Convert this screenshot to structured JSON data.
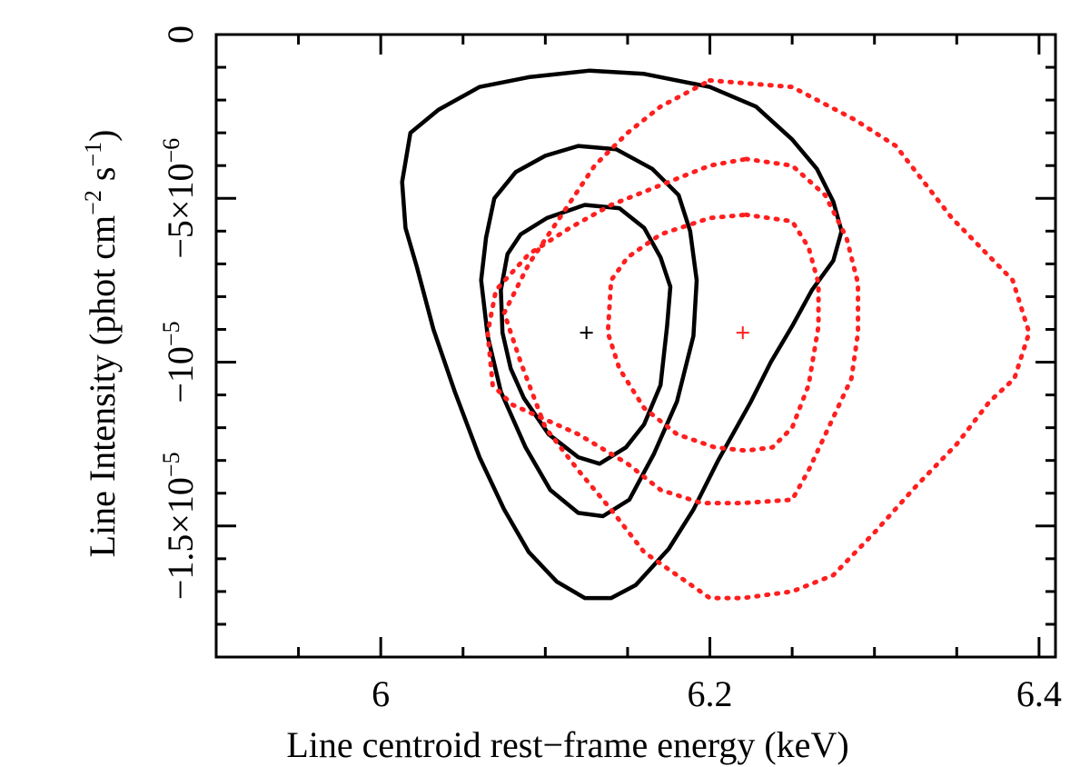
{
  "chart_data": {
    "type": "contour",
    "title": "",
    "xlabel": "Line centroid rest−frame energy (keV)",
    "ylabel": {
      "base": "Line Intensity (phot cm",
      "exp1": "−2",
      "mid": " s",
      "exp2": "−1",
      "close": ")"
    },
    "xlim": [
      5.9,
      6.41
    ],
    "ylim": [
      -1.9e-05,
      0
    ],
    "x_ticks": [
      {
        "value": 6.0,
        "label": "6"
      },
      {
        "value": 6.2,
        "label": "6.2"
      },
      {
        "value": 6.4,
        "label": "6.4"
      }
    ],
    "y_ticks": [
      {
        "value": 0,
        "label": "0",
        "kind": "plain"
      },
      {
        "value": -5e-06,
        "kind": "sci",
        "sign": "−",
        "mant": "5",
        "times": "×",
        "base": "10",
        "exp": "−6"
      },
      {
        "value": -1e-05,
        "kind": "sci",
        "sign": "−",
        "mant": "",
        "times": "",
        "base": "10",
        "exp": "−5"
      },
      {
        "value": -1.5e-05,
        "kind": "sci",
        "sign": "−",
        "mant": "1.5",
        "times": "×",
        "base": "10",
        "exp": "−5"
      }
    ],
    "x_minor_step": 0.05,
    "y_minor_step": 1e-06,
    "series": [
      {
        "name": "black-contours",
        "color": "#000000",
        "style": "solid",
        "best_fit": [
          6.125,
          -9.1e-06
        ],
        "contours": [
          [
            [
              6.124,
              -5.2e-06
            ],
            [
              6.145,
              -5.3e-06
            ],
            [
              6.16,
              -5.9e-06
            ],
            [
              6.17,
              -6.8e-06
            ],
            [
              6.176,
              -7.7e-06
            ],
            [
              6.174,
              -8.9e-06
            ],
            [
              6.17,
              -1.07e-05
            ],
            [
              6.16,
              -1.19e-05
            ],
            [
              6.149,
              -1.26e-05
            ],
            [
              6.133,
              -1.31e-05
            ],
            [
              6.12,
              -1.29e-05
            ],
            [
              6.102,
              -1.22e-05
            ],
            [
              6.087,
              -1.11e-05
            ],
            [
              6.079,
              -1.02e-05
            ],
            [
              6.074,
              -9.1e-06
            ],
            [
              6.073,
              -7.8e-06
            ],
            [
              6.077,
              -6.7e-06
            ],
            [
              6.085,
              -6.1e-06
            ],
            [
              6.101,
              -5.6e-06
            ],
            [
              6.124,
              -5.2e-06
            ]
          ],
          [
            [
              6.12,
              -3.4e-06
            ],
            [
              6.143,
              -3.5e-06
            ],
            [
              6.165,
              -4.1e-06
            ],
            [
              6.181,
              -4.9e-06
            ],
            [
              6.188,
              -6e-06
            ],
            [
              6.192,
              -7.5e-06
            ],
            [
              6.19,
              -9.2e-06
            ],
            [
              6.18,
              -1.12e-05
            ],
            [
              6.166,
              -1.28e-05
            ],
            [
              6.151,
              -1.42e-05
            ],
            [
              6.135,
              -1.47e-05
            ],
            [
              6.12,
              -1.46e-05
            ],
            [
              6.103,
              -1.39e-05
            ],
            [
              6.088,
              -1.26e-05
            ],
            [
              6.073,
              -1.09e-05
            ],
            [
              6.065,
              -9.2e-06
            ],
            [
              6.061,
              -7.5e-06
            ],
            [
              6.064,
              -6.2e-06
            ],
            [
              6.069,
              -5e-06
            ],
            [
              6.082,
              -4.2e-06
            ],
            [
              6.1,
              -3.7e-06
            ],
            [
              6.12,
              -3.4e-06
            ]
          ],
          [
            [
              6.127,
              -1.1e-06
            ],
            [
              6.16,
              -1.2e-06
            ],
            [
              6.2,
              -1.6e-06
            ],
            [
              6.228,
              -2.2e-06
            ],
            [
              6.25,
              -3.2e-06
            ],
            [
              6.265,
              -4.1e-06
            ],
            [
              6.275,
              -5.1e-06
            ],
            [
              6.28,
              -6e-06
            ],
            [
              6.275,
              -6.9e-06
            ],
            [
              6.262,
              -7.8e-06
            ],
            [
              6.25,
              -8.9e-06
            ],
            [
              6.237,
              -1e-05
            ],
            [
              6.225,
              -1.12e-05
            ],
            [
              6.205,
              -1.3e-05
            ],
            [
              6.19,
              -1.45e-05
            ],
            [
              6.175,
              -1.57e-05
            ],
            [
              6.155,
              -1.68e-05
            ],
            [
              6.14,
              -1.72e-05
            ],
            [
              6.124,
              -1.72e-05
            ],
            [
              6.107,
              -1.67e-05
            ],
            [
              6.09,
              -1.58e-05
            ],
            [
              6.075,
              -1.45e-05
            ],
            [
              6.06,
              -1.29e-05
            ],
            [
              6.045,
              -1.09e-05
            ],
            [
              6.032,
              -9e-06
            ],
            [
              6.022,
              -7.1e-06
            ],
            [
              6.015,
              -5.9e-06
            ],
            [
              6.013,
              -4.5e-06
            ],
            [
              6.018,
              -3e-06
            ],
            [
              6.035,
              -2.3e-06
            ],
            [
              6.06,
              -1.6e-06
            ],
            [
              6.09,
              -1.3e-06
            ],
            [
              6.127,
              -1.1e-06
            ]
          ]
        ]
      },
      {
        "name": "red-contours",
        "color": "#ff1f1f",
        "style": "dotted",
        "best_fit": [
          6.22,
          -9.1e-06
        ],
        "contours": [
          [
            [
              6.222,
              -5.5e-06
            ],
            [
              6.25,
              -5.7e-06
            ],
            [
              6.26,
              -6.5e-06
            ],
            [
              6.266,
              -7.6e-06
            ],
            [
              6.266,
              -8.9e-06
            ],
            [
              6.26,
              -1.07e-05
            ],
            [
              6.25,
              -1.2e-05
            ],
            [
              6.238,
              -1.26e-05
            ],
            [
              6.222,
              -1.27e-05
            ],
            [
              6.203,
              -1.26e-05
            ],
            [
              6.18,
              -1.22e-05
            ],
            [
              6.16,
              -1.14e-05
            ],
            [
              6.145,
              -1.02e-05
            ],
            [
              6.138,
              -9.1e-06
            ],
            [
              6.14,
              -7.5e-06
            ],
            [
              6.15,
              -6.8e-06
            ],
            [
              6.17,
              -6.1e-06
            ],
            [
              6.2,
              -5.6e-06
            ],
            [
              6.222,
              -5.5e-06
            ]
          ],
          [
            [
              6.222,
              -3.8e-06
            ],
            [
              6.25,
              -4e-06
            ],
            [
              6.27,
              -4.9e-06
            ],
            [
              6.283,
              -6.2e-06
            ],
            [
              6.29,
              -7.6e-06
            ],
            [
              6.29,
              -9.1e-06
            ],
            [
              6.286,
              -1.05e-05
            ],
            [
              6.273,
              -1.19e-05
            ],
            [
              6.26,
              -1.33e-05
            ],
            [
              6.25,
              -1.42e-05
            ],
            [
              6.22,
              -1.43e-05
            ],
            [
              6.195,
              -1.43e-05
            ],
            [
              6.17,
              -1.39e-05
            ],
            [
              6.15,
              -1.31e-05
            ],
            [
              6.12,
              -1.22e-05
            ],
            [
              6.08,
              -1.13e-05
            ],
            [
              6.068,
              -1.07e-05
            ],
            [
              6.065,
              -9.1e-06
            ],
            [
              6.07,
              -7.8e-06
            ],
            [
              6.09,
              -6.7e-06
            ],
            [
              6.115,
              -5.9e-06
            ],
            [
              6.14,
              -5.2e-06
            ],
            [
              6.17,
              -4.6e-06
            ],
            [
              6.2,
              -4e-06
            ],
            [
              6.222,
              -3.8e-06
            ]
          ],
          [
            [
              6.2,
              -1.4e-06
            ],
            [
              6.25,
              -1.6e-06
            ],
            [
              6.288,
              -2.6e-06
            ],
            [
              6.313,
              -3.4e-06
            ],
            [
              6.347,
              -5.6e-06
            ],
            [
              6.384,
              -7.5e-06
            ],
            [
              6.394,
              -9.1e-06
            ],
            [
              6.385,
              -1.05e-05
            ],
            [
              6.37,
              -1.12e-05
            ],
            [
              6.35,
              -1.25e-05
            ],
            [
              6.325,
              -1.38e-05
            ],
            [
              6.3,
              -1.52e-05
            ],
            [
              6.275,
              -1.65e-05
            ],
            [
              6.25,
              -1.7e-05
            ],
            [
              6.22,
              -1.72e-05
            ],
            [
              6.2,
              -1.72e-05
            ],
            [
              6.18,
              -1.65e-05
            ],
            [
              6.16,
              -1.58e-05
            ],
            [
              6.14,
              -1.45e-05
            ],
            [
              6.12,
              -1.33e-05
            ],
            [
              6.1,
              -1.2e-05
            ],
            [
              6.085,
              -1e-05
            ],
            [
              6.075,
              -8.5e-06
            ],
            [
              6.09,
              -7e-06
            ],
            [
              6.11,
              -5.5e-06
            ],
            [
              6.13,
              -4e-06
            ],
            [
              6.15,
              -3e-06
            ],
            [
              6.17,
              -2.2e-06
            ],
            [
              6.2,
              -1.4e-06
            ]
          ]
        ]
      }
    ]
  }
}
